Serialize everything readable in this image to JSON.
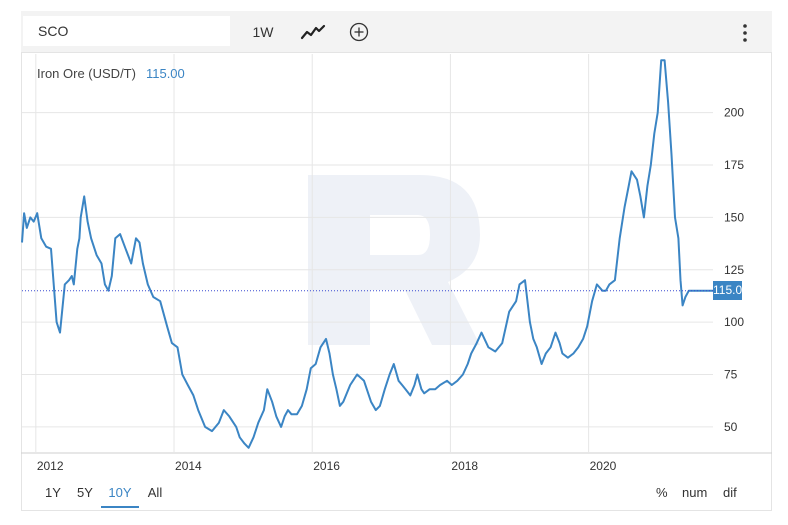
{
  "toolbar": {
    "symbol": "SCO",
    "interval": "1W",
    "chart_type_icon": "line-chart-icon",
    "add_icon": "plus-circle-icon",
    "menu_icon": "vertical-dots-icon"
  },
  "legend": {
    "name": "Iron Ore (USD/T)",
    "value": "115.00"
  },
  "price_tag": "115.0",
  "ranges": [
    "1Y",
    "5Y",
    "10Y",
    "All"
  ],
  "active_range": "10Y",
  "modes": [
    "%",
    "num",
    "dif"
  ],
  "colors": {
    "line": "#3b85c4",
    "grid": "#e6e6e6",
    "tag": "#3b85c4",
    "watermark": "#eef1f7"
  },
  "chart_data": {
    "type": "line",
    "series": [
      {
        "name": "Iron Ore (USD/T)",
        "x": [
          2011.8,
          2011.83,
          2011.87,
          2011.92,
          2011.97,
          2012.02,
          2012.08,
          2012.15,
          2012.22,
          2012.3,
          2012.35,
          2012.42,
          2012.48,
          2012.52,
          2012.55,
          2012.6,
          2012.63,
          2012.65,
          2012.7,
          2012.75,
          2012.8,
          2012.88,
          2012.95,
          2013.0,
          2013.05,
          2013.1,
          2013.15,
          2013.22,
          2013.3,
          2013.38,
          2013.45,
          2013.5,
          2013.55,
          2013.62,
          2013.7,
          2013.8,
          2013.9,
          2013.97,
          2014.05,
          2014.12,
          2014.2,
          2014.28,
          2014.35,
          2014.45,
          2014.55,
          2014.65,
          2014.72,
          2014.8,
          2014.9,
          2014.95,
          2015.02,
          2015.08,
          2015.15,
          2015.22,
          2015.3,
          2015.35,
          2015.42,
          2015.48,
          2015.55,
          2015.6,
          2015.65,
          2015.7,
          2015.78,
          2015.85,
          2015.92,
          2015.98,
          2016.05,
          2016.12,
          2016.2,
          2016.25,
          2016.3,
          2016.35,
          2016.4,
          2016.45,
          2016.55,
          2016.65,
          2016.75,
          2016.85,
          2016.92,
          2016.98,
          2017.05,
          2017.12,
          2017.18,
          2017.25,
          2017.3,
          2017.35,
          2017.42,
          2017.48,
          2017.52,
          2017.58,
          2017.62,
          2017.7,
          2017.78,
          2017.85,
          2017.95,
          2018.02,
          2018.1,
          2018.18,
          2018.25,
          2018.3,
          2018.38,
          2018.45,
          2018.55,
          2018.65,
          2018.75,
          2018.85,
          2018.95,
          2019.0,
          2019.08,
          2019.15,
          2019.2,
          2019.25,
          2019.32,
          2019.38,
          2019.45,
          2019.52,
          2019.58,
          2019.62,
          2019.7,
          2019.78,
          2019.85,
          2019.92,
          2019.98,
          2020.05,
          2020.12,
          2020.2,
          2020.25,
          2020.3,
          2020.38,
          2020.45,
          2020.52,
          2020.58,
          2020.62,
          2020.7,
          2020.75,
          2020.8,
          2020.85,
          2020.9,
          2020.95,
          2021.0,
          2021.05,
          2021.1,
          2021.15,
          2021.2,
          2021.25,
          2021.3,
          2021.33,
          2021.36,
          2021.4,
          2021.45,
          2021.5,
          2021.55,
          2021.6,
          2021.63,
          2021.66,
          2021.7,
          2021.74,
          2021.78,
          2021.8
        ],
        "values": [
          138,
          152,
          145,
          150,
          148,
          152,
          140,
          136,
          135,
          100,
          95,
          118,
          120,
          122,
          118,
          135,
          140,
          150,
          160,
          148,
          140,
          132,
          128,
          118,
          115,
          122,
          140,
          142,
          135,
          128,
          140,
          138,
          128,
          118,
          112,
          110,
          98,
          90,
          88,
          75,
          70,
          65,
          58,
          50,
          48,
          52,
          58,
          55,
          50,
          45,
          42,
          40,
          45,
          52,
          58,
          68,
          62,
          55,
          50,
          55,
          58,
          56,
          56,
          60,
          68,
          78,
          80,
          88,
          92,
          85,
          75,
          68,
          60,
          62,
          70,
          75,
          72,
          62,
          58,
          60,
          68,
          75,
          80,
          72,
          70,
          68,
          65,
          70,
          75,
          68,
          66,
          68,
          68,
          70,
          72,
          70,
          72,
          75,
          80,
          85,
          90,
          95,
          88,
          86,
          90,
          105,
          110,
          118,
          120,
          100,
          92,
          88,
          80,
          85,
          88,
          95,
          90,
          85,
          83,
          85,
          88,
          92,
          98,
          110,
          118,
          115,
          115,
          118,
          120,
          140,
          155,
          165,
          172,
          168,
          160,
          150,
          165,
          175,
          190,
          200,
          225,
          225,
          205,
          180,
          150,
          140,
          120,
          108,
          112,
          115,
          115,
          115,
          115,
          115,
          115,
          115,
          115,
          115,
          115
        ]
      }
    ],
    "xlim": [
      2011.8,
      2021.8
    ],
    "ylim": [
      38,
      228
    ],
    "x_ticks": [
      2012,
      2014,
      2016,
      2018,
      2020
    ],
    "x_tick_labels": [
      "2012",
      "2014",
      "2016",
      "2018",
      "2020"
    ],
    "y_ticks": [
      50,
      75,
      100,
      125,
      150,
      175,
      200
    ],
    "current_value": 115,
    "grid": true
  }
}
